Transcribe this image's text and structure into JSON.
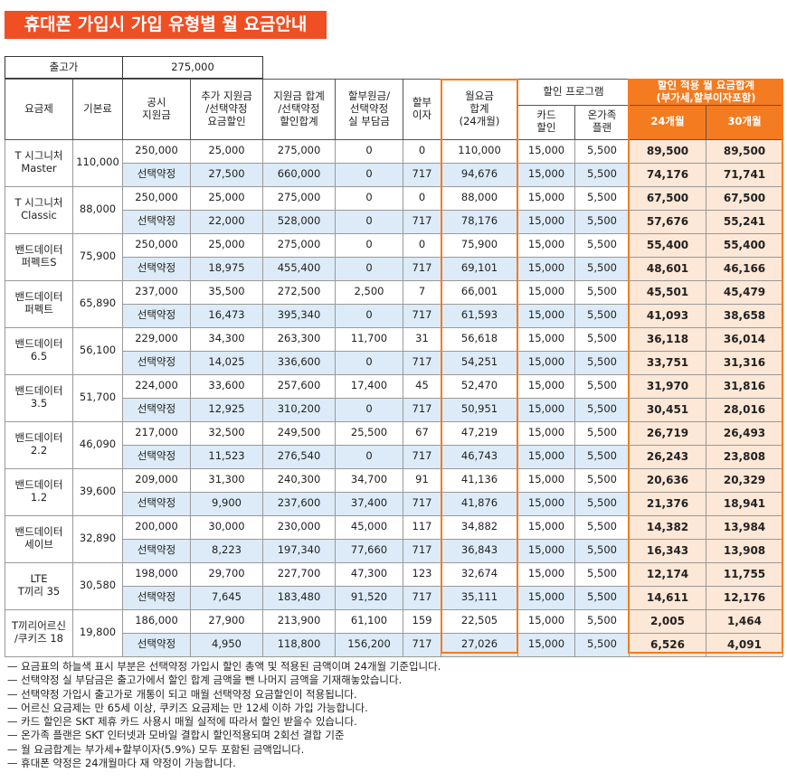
{
  "title": "휴대폰 가입시 가입 유형별 월 요금안내",
  "price": {
    "label": "출고가",
    "value": "275,000"
  },
  "headers": {
    "plan": "요금제",
    "base": "기본료",
    "public": "공시\n지원금",
    "extra": "추가 지원금\n/선택약정\n요금할인",
    "total": "지원금 합계\n/선택약정\n할인합계",
    "principal": "할부원금/\n선택약정\n실 부담금",
    "interest": "할부\n이자",
    "monthly": "월요금\n합계\n(24개월)",
    "program": "할인 프로그램",
    "card": "카드\n할인",
    "family": "온가족\n플랜",
    "final": "할인 적용 월 요금합계\n(부가세,할부이자포함)",
    "m24": "24개월",
    "m30": "30개월"
  },
  "plans": [
    {
      "name": "T 시그니처\nMaster",
      "base": "110,000",
      "rows": [
        [
          "250,000",
          "25,000",
          "275,000",
          "0",
          "0",
          "110,000",
          "15,000",
          "5,500",
          "89,500",
          "89,500"
        ],
        [
          "선택약정",
          "27,500",
          "660,000",
          "0",
          "717",
          "94,676",
          "15,000",
          "5,500",
          "74,176",
          "71,741"
        ]
      ]
    },
    {
      "name": "T 시그니처\nClassic",
      "base": "88,000",
      "rows": [
        [
          "250,000",
          "25,000",
          "275,000",
          "0",
          "0",
          "88,000",
          "15,000",
          "5,500",
          "67,500",
          "67,500"
        ],
        [
          "선택약정",
          "22,000",
          "528,000",
          "0",
          "717",
          "78,176",
          "15,000",
          "5,500",
          "57,676",
          "55,241"
        ]
      ]
    },
    {
      "name": "밴드데이터\n퍼펙트S",
      "base": "75,900",
      "rows": [
        [
          "250,000",
          "25,000",
          "275,000",
          "0",
          "0",
          "75,900",
          "15,000",
          "5,500",
          "55,400",
          "55,400"
        ],
        [
          "선택약정",
          "18,975",
          "455,400",
          "0",
          "717",
          "69,101",
          "15,000",
          "5,500",
          "48,601",
          "46,166"
        ]
      ]
    },
    {
      "name": "밴드데이터\n퍼펙트",
      "base": "65,890",
      "rows": [
        [
          "237,000",
          "35,500",
          "272,500",
          "2,500",
          "7",
          "66,001",
          "15,000",
          "5,500",
          "45,501",
          "45,479"
        ],
        [
          "선택약정",
          "16,473",
          "395,340",
          "0",
          "717",
          "61,593",
          "15,000",
          "5,500",
          "41,093",
          "38,658"
        ]
      ]
    },
    {
      "name": "밴드데이터\n6.5",
      "base": "56,100",
      "rows": [
        [
          "229,000",
          "34,300",
          "263,300",
          "11,700",
          "31",
          "56,618",
          "15,000",
          "5,500",
          "36,118",
          "36,014"
        ],
        [
          "선택약정",
          "14,025",
          "336,600",
          "0",
          "717",
          "54,251",
          "15,000",
          "5,500",
          "33,751",
          "31,316"
        ]
      ]
    },
    {
      "name": "밴드데이터\n3.5",
      "base": "51,700",
      "rows": [
        [
          "224,000",
          "33,600",
          "257,600",
          "17,400",
          "45",
          "52,470",
          "15,000",
          "5,500",
          "31,970",
          "31,816"
        ],
        [
          "선택약정",
          "12,925",
          "310,200",
          "0",
          "717",
          "50,951",
          "15,000",
          "5,500",
          "30,451",
          "28,016"
        ]
      ]
    },
    {
      "name": "밴드데이터\n2.2",
      "base": "46,090",
      "rows": [
        [
          "217,000",
          "32,500",
          "249,500",
          "25,500",
          "67",
          "47,219",
          "15,000",
          "5,500",
          "26,719",
          "26,493"
        ],
        [
          "선택약정",
          "11,523",
          "276,540",
          "0",
          "717",
          "46,743",
          "15,000",
          "5,500",
          "26,243",
          "23,808"
        ]
      ]
    },
    {
      "name": "밴드데이터\n1.2",
      "base": "39,600",
      "rows": [
        [
          "209,000",
          "31,300",
          "240,300",
          "34,700",
          "91",
          "41,136",
          "15,000",
          "5,500",
          "20,636",
          "20,329"
        ],
        [
          "선택약정",
          "9,900",
          "237,600",
          "37,400",
          "717",
          "41,876",
          "15,000",
          "5,500",
          "21,376",
          "18,941"
        ]
      ]
    },
    {
      "name": "밴드데이터\n세이브",
      "base": "32,890",
      "rows": [
        [
          "200,000",
          "30,000",
          "230,000",
          "45,000",
          "117",
          "34,882",
          "15,000",
          "5,500",
          "14,382",
          "13,984"
        ],
        [
          "선택약정",
          "8,223",
          "197,340",
          "77,660",
          "717",
          "36,843",
          "15,000",
          "5,500",
          "16,343",
          "13,908"
        ]
      ]
    },
    {
      "name": "LTE\nT끼리 35",
      "base": "30,580",
      "rows": [
        [
          "198,000",
          "29,700",
          "227,700",
          "47,300",
          "123",
          "32,674",
          "15,000",
          "5,500",
          "12,174",
          "11,755"
        ],
        [
          "선택약정",
          "7,645",
          "183,480",
          "91,520",
          "717",
          "35,111",
          "15,000",
          "5,500",
          "14,611",
          "12,176"
        ]
      ]
    },
    {
      "name": "T끼리어르신\n/쿠키즈 18",
      "base": "19,800",
      "rows": [
        [
          "186,000",
          "27,900",
          "213,900",
          "61,100",
          "159",
          "22,505",
          "15,000",
          "5,500",
          "2,005",
          "1,464"
        ],
        [
          "선택약정",
          "4,950",
          "118,800",
          "156,200",
          "717",
          "27,026",
          "15,000",
          "5,500",
          "6,526",
          "4,091"
        ]
      ]
    }
  ],
  "notes": [
    "— 요금표의 하늘색 표시 부분은 선택약정 가입시 할인 총액 및 적용된 금액이며 24개월 기준입니다.",
    "— 선택약정 실 부담금은 출고가에서 할인 합계 금액을 뺀 나머지 금액을 기재해놓았습니다.",
    "— 선택약정 가입시 출고가로 개통이 되고 매월 선택약정 요금할인이 적용됩니다.",
    "— 어르신 요금제는 만 65세 이상, 쿠키즈 요금제는 만 12세 이하 가입 가능합니다.",
    "— 카드 할인은 SKT 제휴 카드 사용시 매월 실적에 따라서 할인 받을수 있습니다.",
    "— 온가족 플랜은 SKT 인터넷과 모바일 결합시 할인적용되며 2회선 결합 기준",
    "— 월 요금합계는 부가세+할부이자(5.9%) 모두 포함된 금액입니다.",
    "— 휴대폰 약정은 24개월마다 재 약정이 가능합니다."
  ]
}
